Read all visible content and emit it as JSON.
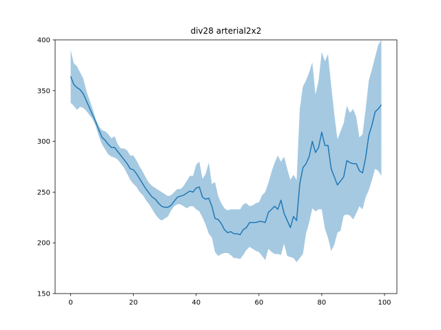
{
  "chart_data": {
    "type": "line",
    "title": "div28 arterial2x2",
    "xlabel": "",
    "ylabel": "",
    "xlim": [
      -4.95,
      103.95
    ],
    "ylim": [
      150,
      400
    ],
    "x_ticks": [
      0,
      20,
      40,
      60,
      80,
      100
    ],
    "y_ticks": [
      150,
      200,
      250,
      300,
      350,
      400
    ],
    "grid": false,
    "legend": "none",
    "colors": {
      "line": "#1f77b4",
      "band": "#1f77b4",
      "band_opacity": 0.4
    },
    "x": [
      0,
      1,
      2,
      3,
      4,
      5,
      6,
      7,
      8,
      9,
      10,
      11,
      12,
      13,
      14,
      15,
      16,
      17,
      18,
      19,
      20,
      21,
      22,
      23,
      24,
      25,
      26,
      27,
      28,
      29,
      30,
      31,
      32,
      33,
      34,
      35,
      36,
      37,
      38,
      39,
      40,
      41,
      42,
      43,
      44,
      45,
      46,
      47,
      48,
      49,
      50,
      51,
      52,
      53,
      54,
      55,
      56,
      57,
      58,
      59,
      60,
      61,
      62,
      63,
      64,
      65,
      66,
      67,
      68,
      69,
      70,
      71,
      72,
      73,
      74,
      75,
      76,
      77,
      78,
      79,
      80,
      81,
      82,
      83,
      84,
      85,
      86,
      87,
      88,
      89,
      90,
      91,
      92,
      93,
      94,
      95,
      96,
      97,
      98,
      99
    ],
    "series": [
      {
        "mean": [
          364,
          356,
          353,
          351,
          347,
          340,
          333,
          326,
          319,
          311,
          304,
          301,
          297,
          294,
          294,
          290,
          286,
          282,
          278,
          273,
          272,
          268,
          263,
          258,
          253,
          249,
          245,
          243,
          239,
          236,
          235,
          235,
          237,
          241,
          245,
          246,
          247,
          249,
          251,
          250,
          254,
          255,
          245,
          243,
          244,
          236,
          224,
          223,
          219,
          213,
          210,
          211,
          209,
          209,
          208,
          213,
          215,
          220,
          220,
          220,
          221,
          221,
          220,
          230,
          233,
          236,
          233,
          242,
          229,
          222,
          215,
          226,
          222,
          258,
          274,
          278,
          285,
          300,
          289,
          294,
          309,
          296,
          296,
          273,
          265,
          257,
          261,
          265,
          281,
          279,
          278,
          278,
          271,
          269,
          284,
          306,
          316,
          329,
          332,
          336
        ],
        "lower": [
          338,
          335,
          331,
          334,
          333,
          330,
          326,
          322,
          315,
          305,
          297,
          292,
          287,
          285,
          284,
          282,
          278,
          274,
          268,
          262,
          258,
          255,
          250,
          247,
          242,
          238,
          233,
          228,
          224,
          222,
          224,
          226,
          232,
          236,
          238,
          238,
          236,
          234,
          236,
          236,
          233,
          231,
          225,
          218,
          209,
          205,
          191,
          187,
          189,
          190,
          190,
          188,
          185,
          185,
          184,
          188,
          193,
          196,
          194,
          192,
          191,
          187,
          183,
          194,
          191,
          189,
          189,
          188,
          199,
          187,
          186,
          185,
          181,
          185,
          189,
          209,
          220,
          234,
          231,
          233,
          233,
          214,
          205,
          192,
          198,
          210,
          212,
          227,
          228,
          227,
          223,
          229,
          236,
          233,
          245,
          252,
          262,
          273,
          271,
          266
        ],
        "upper": [
          390,
          377,
          374,
          368,
          362,
          350,
          341,
          332,
          322,
          315,
          311,
          310,
          307,
          303,
          305,
          297,
          293,
          293,
          291,
          286,
          286,
          281,
          275,
          270,
          264,
          259,
          256,
          254,
          252,
          250,
          248,
          246,
          247,
          250,
          253,
          253,
          256,
          261,
          266,
          266,
          277,
          280,
          263,
          268,
          279,
          258,
          260,
          246,
          239,
          234,
          232,
          233,
          233,
          233,
          233,
          238,
          239,
          236,
          237,
          239,
          240,
          247,
          250,
          259,
          270,
          279,
          286,
          280,
          285,
          273,
          262,
          267,
          262,
          332,
          354,
          360,
          368,
          378,
          346,
          360,
          388,
          379,
          386,
          355,
          327,
          302,
          310,
          318,
          335,
          328,
          332,
          324,
          304,
          307,
          332,
          360,
          371,
          383,
          395,
          400
        ]
      }
    ]
  }
}
